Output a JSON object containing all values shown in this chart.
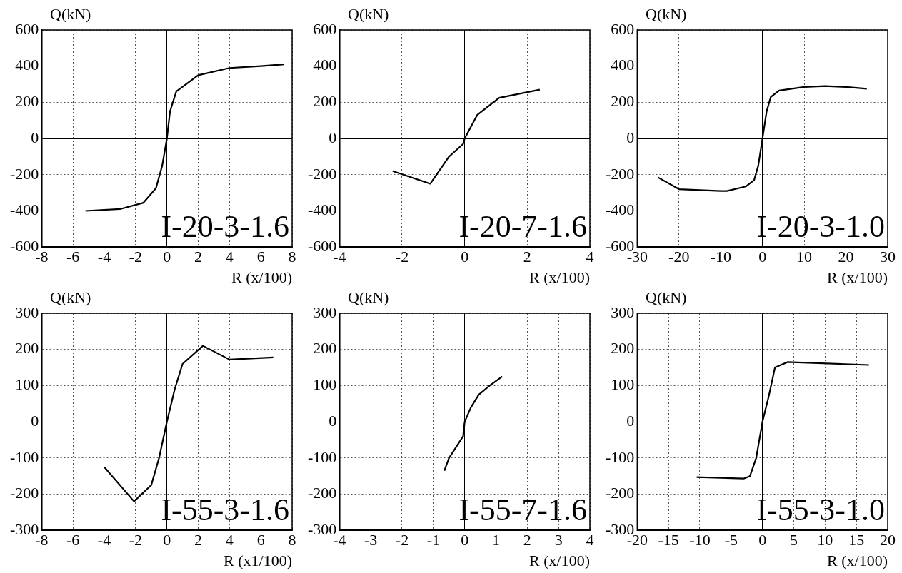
{
  "chart_data": [
    {
      "type": "line",
      "xlabel": "R (x/100)",
      "ylabel": "Q(kN)",
      "annotations": [
        "I-20-3-1.6"
      ],
      "xlim": [
        -8,
        8
      ],
      "xticks": [
        -8,
        -6,
        -4,
        -2,
        0,
        2,
        4,
        6,
        8
      ],
      "ylim": [
        -600,
        600
      ],
      "yticks": [
        -600,
        -400,
        -200,
        0,
        200,
        400,
        600
      ],
      "grid": true,
      "legend": false,
      "marker": "none",
      "line_style": "solid",
      "series": [
        {
          "color": "#000000",
          "x": [
            -5.2,
            -3,
            -1.5,
            -0.7,
            -0.3,
            0,
            0.2,
            0.6,
            2,
            4,
            6,
            7.5
          ],
          "values": [
            -400,
            -390,
            -355,
            -275,
            -150,
            0,
            150,
            260,
            350,
            390,
            400,
            410
          ]
        }
      ]
    },
    {
      "type": "line",
      "xlabel": "R (x/100)",
      "ylabel": "Q(kN)",
      "annotations": [
        "I-20-7-1.6"
      ],
      "xlim": [
        -4,
        4
      ],
      "xticks": [
        -4,
        -2,
        0,
        2,
        4
      ],
      "ylim": [
        -600,
        600
      ],
      "yticks": [
        -600,
        -400,
        -200,
        0,
        200,
        400,
        600
      ],
      "grid": true,
      "legend": false,
      "marker": "none",
      "line_style": "solid",
      "series": [
        {
          "color": "#000000",
          "x": [
            -2.3,
            -1.1,
            -0.5,
            -0.05,
            0,
            0.4,
            1.1,
            2.4
          ],
          "values": [
            -180,
            -250,
            -100,
            -30,
            0,
            130,
            225,
            270
          ]
        }
      ]
    },
    {
      "type": "line",
      "xlabel": "R (x/100)",
      "ylabel": "Q(kN)",
      "annotations": [
        "I-20-3-1.0"
      ],
      "xlim": [
        -30,
        30
      ],
      "xticks": [
        -30,
        -20,
        -10,
        0,
        10,
        20,
        30
      ],
      "ylim": [
        -600,
        600
      ],
      "yticks": [
        -600,
        -400,
        -200,
        0,
        200,
        400,
        600
      ],
      "grid": true,
      "legend": false,
      "marker": "none",
      "line_style": "solid",
      "series": [
        {
          "color": "#000000",
          "x": [
            -25,
            -20,
            -10,
            -8.5,
            -4,
            -2,
            -1,
            0,
            1,
            2,
            4,
            10,
            15,
            20,
            25
          ],
          "values": [
            -215,
            -280,
            -290,
            -290,
            -265,
            -230,
            -150,
            0,
            150,
            230,
            265,
            285,
            290,
            285,
            275
          ]
        }
      ]
    },
    {
      "type": "line",
      "xlabel": "R (x1/100)",
      "ylabel": "Q(kN)",
      "annotations": [
        "I-55-3-1.6"
      ],
      "xlim": [
        -8,
        8
      ],
      "xticks": [
        -8,
        -6,
        -4,
        -2,
        0,
        2,
        4,
        6,
        8
      ],
      "ylim": [
        -300,
        300
      ],
      "yticks": [
        -300,
        -200,
        -100,
        0,
        100,
        200,
        300
      ],
      "grid": true,
      "legend": false,
      "marker": "none",
      "line_style": "solid",
      "series": [
        {
          "color": "#000000",
          "x": [
            -4,
            -2.1,
            -1,
            -0.5,
            0,
            0.5,
            1,
            2.3,
            4,
            6.8
          ],
          "values": [
            -125,
            -220,
            -175,
            -100,
            0,
            90,
            160,
            210,
            172,
            178
          ]
        }
      ]
    },
    {
      "type": "line",
      "xlabel": "R (x/100)",
      "ylabel": "Q(kN)",
      "annotations": [
        "I-55-7-1.6"
      ],
      "xlim": [
        -4,
        4
      ],
      "xticks": [
        -4,
        -3,
        -2,
        -1,
        0,
        1,
        2,
        3,
        4
      ],
      "ylim": [
        -300,
        300
      ],
      "yticks": [
        -300,
        -200,
        -100,
        0,
        100,
        200,
        300
      ],
      "grid": true,
      "legend": false,
      "marker": "none",
      "line_style": "solid",
      "series": [
        {
          "color": "#000000",
          "x": [
            -0.65,
            -0.5,
            -0.05,
            0,
            0.2,
            0.45,
            0.8,
            1.2
          ],
          "values": [
            -135,
            -100,
            -40,
            0,
            40,
            75,
            100,
            125
          ]
        }
      ]
    },
    {
      "type": "line",
      "xlabel": "R (x/100)",
      "ylabel": "Q(kN)",
      "annotations": [
        "I-55-3-1.0"
      ],
      "xlim": [
        -20,
        20
      ],
      "xticks": [
        -20,
        -15,
        -10,
        -5,
        0,
        5,
        10,
        15,
        20
      ],
      "ylim": [
        -300,
        300
      ],
      "yticks": [
        -300,
        -200,
        -100,
        0,
        100,
        200,
        300
      ],
      "grid": true,
      "legend": false,
      "marker": "none",
      "line_style": "solid",
      "series": [
        {
          "color": "#000000",
          "x": [
            -10.5,
            -3,
            -2,
            -1,
            0,
            1,
            2,
            4,
            17
          ],
          "values": [
            -153,
            -157,
            -150,
            -100,
            0,
            70,
            150,
            165,
            157
          ]
        }
      ]
    }
  ]
}
